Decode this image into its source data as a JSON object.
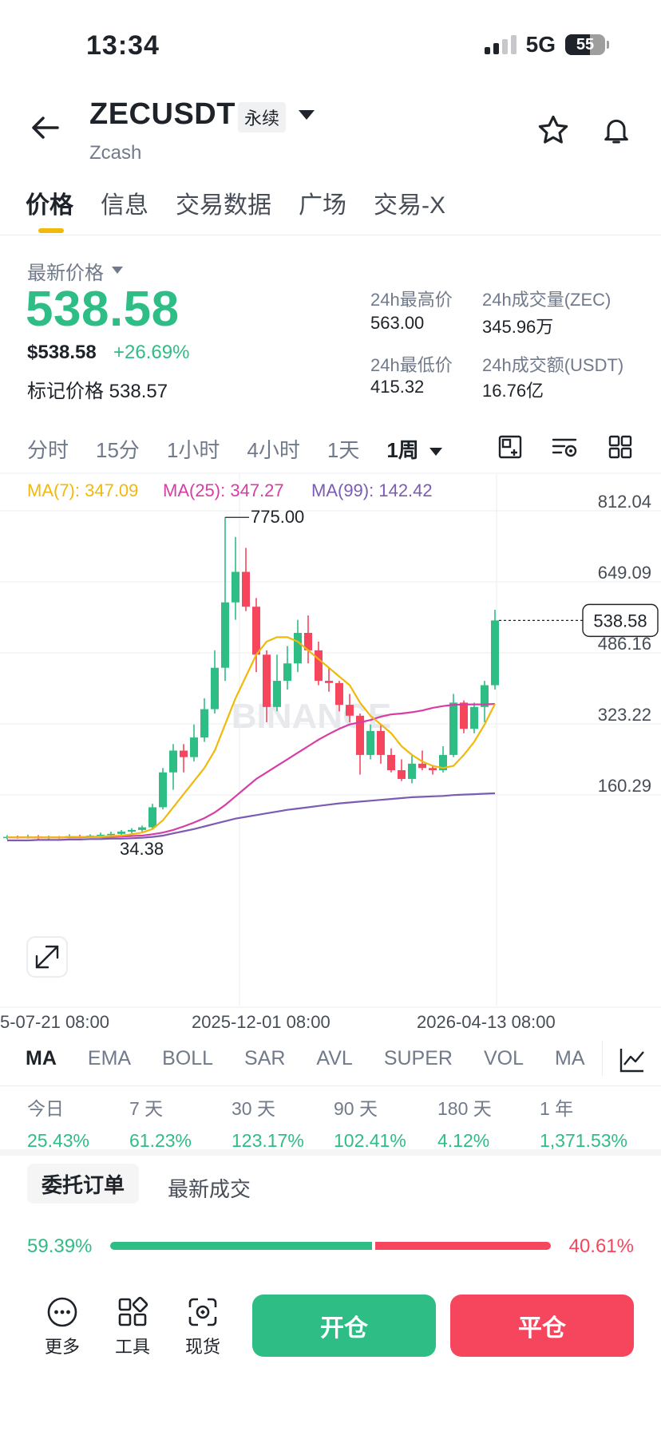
{
  "status_bar": {
    "time": "13:34",
    "network": "5G",
    "battery": "55"
  },
  "header": {
    "symbol": "ZECUSDT",
    "contract_type": "永续",
    "subtitle": "Zcash"
  },
  "tabs": [
    {
      "label": "价格"
    },
    {
      "label": "信息"
    },
    {
      "label": "交易数据"
    },
    {
      "label": "广场"
    },
    {
      "label": "交易-X"
    }
  ],
  "price_info": {
    "latest_label": "最新价格",
    "last_price": "538.58",
    "usd_price": "$538.58",
    "change_pct": "+26.69%",
    "mark_label": "标记价格",
    "mark_price": "538.57",
    "high_label": "24h最高价",
    "high": "563.00",
    "low_label": "24h最低价",
    "low": "415.32",
    "vol_label": "24h成交量(ZEC)",
    "vol": "345.96万",
    "amount_label": "24h成交额(USDT)",
    "amount": "16.76亿"
  },
  "intervals": [
    {
      "label": "分时"
    },
    {
      "label": "15分"
    },
    {
      "label": "1小时"
    },
    {
      "label": "4小时"
    },
    {
      "label": "1天"
    },
    {
      "label": "1周"
    }
  ],
  "chart_data": {
    "type": "candlestick",
    "ma_legend": {
      "ma7": "MA(7): 347.09",
      "ma25": "MA(25): 347.27",
      "ma99": "MA(99): 142.42"
    },
    "y_ticks": [
      "812.04",
      "649.09",
      "486.16",
      "323.22",
      "160.29"
    ],
    "x_ticks": [
      "5-07-21 08:00",
      "2025-12-01 08:00",
      "2026-04-13 08:00"
    ],
    "current_price_label": "538.58",
    "current_price": 538.58,
    "high_marker": "775.00",
    "high_value": 775.0,
    "low_marker": "34.38",
    "low_value": 34.38,
    "watermark": "BINANCE",
    "colors": {
      "up": "#2ebd85",
      "down": "#f6465d",
      "ma7": "#f0b90b",
      "ma25": "#d63ea3",
      "ma99": "#7b5bb3"
    },
    "candles": [
      {
        "o": 40,
        "c": 42,
        "h": 46,
        "l": 36
      },
      {
        "o": 42,
        "c": 41,
        "h": 45,
        "l": 38
      },
      {
        "o": 41,
        "c": 43,
        "h": 47,
        "l": 38
      },
      {
        "o": 43,
        "c": 40,
        "h": 46,
        "l": 37
      },
      {
        "o": 40,
        "c": 42,
        "h": 45,
        "l": 36
      },
      {
        "o": 42,
        "c": 41,
        "h": 44,
        "l": 38
      },
      {
        "o": 41,
        "c": 44,
        "h": 48,
        "l": 39
      },
      {
        "o": 44,
        "c": 42,
        "h": 47,
        "l": 39
      },
      {
        "o": 42,
        "c": 45,
        "h": 48,
        "l": 40
      },
      {
        "o": 45,
        "c": 47,
        "h": 52,
        "l": 42
      },
      {
        "o": 47,
        "c": 49,
        "h": 54,
        "l": 44
      },
      {
        "o": 49,
        "c": 54,
        "h": 58,
        "l": 46
      },
      {
        "o": 54,
        "c": 58,
        "h": 62,
        "l": 50
      },
      {
        "o": 58,
        "c": 64,
        "h": 68,
        "l": 54
      },
      {
        "o": 64,
        "c": 110,
        "h": 118,
        "l": 60
      },
      {
        "o": 110,
        "c": 190,
        "h": 200,
        "l": 105
      },
      {
        "o": 190,
        "c": 240,
        "h": 255,
        "l": 150
      },
      {
        "o": 240,
        "c": 225,
        "h": 255,
        "l": 190
      },
      {
        "o": 225,
        "c": 270,
        "h": 300,
        "l": 215
      },
      {
        "o": 270,
        "c": 335,
        "h": 360,
        "l": 260
      },
      {
        "o": 335,
        "c": 430,
        "h": 470,
        "l": 325
      },
      {
        "o": 430,
        "c": 580,
        "h": 775,
        "l": 400
      },
      {
        "o": 580,
        "c": 650,
        "h": 730,
        "l": 540
      },
      {
        "o": 650,
        "c": 570,
        "h": 705,
        "l": 560
      },
      {
        "o": 570,
        "c": 460,
        "h": 590,
        "l": 420
      },
      {
        "o": 460,
        "c": 340,
        "h": 470,
        "l": 305
      },
      {
        "o": 340,
        "c": 400,
        "h": 460,
        "l": 330
      },
      {
        "o": 400,
        "c": 440,
        "h": 480,
        "l": 380
      },
      {
        "o": 440,
        "c": 510,
        "h": 540,
        "l": 420
      },
      {
        "o": 510,
        "c": 470,
        "h": 550,
        "l": 440
      },
      {
        "o": 470,
        "c": 400,
        "h": 490,
        "l": 390
      },
      {
        "o": 400,
        "c": 395,
        "h": 430,
        "l": 375
      },
      {
        "o": 395,
        "c": 345,
        "h": 400,
        "l": 330
      },
      {
        "o": 345,
        "c": 320,
        "h": 370,
        "l": 305
      },
      {
        "o": 320,
        "c": 230,
        "h": 325,
        "l": 185
      },
      {
        "o": 230,
        "c": 285,
        "h": 300,
        "l": 220
      },
      {
        "o": 285,
        "c": 230,
        "h": 300,
        "l": 210
      },
      {
        "o": 230,
        "c": 195,
        "h": 245,
        "l": 190
      },
      {
        "o": 195,
        "c": 175,
        "h": 220,
        "l": 170
      },
      {
        "o": 175,
        "c": 210,
        "h": 230,
        "l": 165
      },
      {
        "o": 210,
        "c": 200,
        "h": 240,
        "l": 195
      },
      {
        "o": 200,
        "c": 195,
        "h": 205,
        "l": 185
      },
      {
        "o": 195,
        "c": 230,
        "h": 250,
        "l": 190
      },
      {
        "o": 230,
        "c": 350,
        "h": 370,
        "l": 225
      },
      {
        "o": 350,
        "c": 290,
        "h": 355,
        "l": 280
      },
      {
        "o": 290,
        "c": 340,
        "h": 350,
        "l": 280
      },
      {
        "o": 340,
        "c": 390,
        "h": 400,
        "l": 305
      },
      {
        "o": 390,
        "c": 538.58,
        "h": 563,
        "l": 380
      }
    ],
    "ma7": [
      41,
      41,
      41,
      41,
      41,
      41,
      42,
      42,
      42,
      43,
      44,
      45,
      48,
      52,
      60,
      80,
      110,
      140,
      170,
      200,
      240,
      300,
      360,
      410,
      460,
      490,
      500,
      500,
      490,
      470,
      450,
      430,
      410,
      390,
      350,
      320,
      300,
      280,
      250,
      230,
      215,
      205,
      200,
      205,
      230,
      260,
      300,
      347
    ],
    "ma25": [
      41,
      41,
      41,
      41,
      41,
      41,
      41,
      41,
      42,
      42,
      42,
      43,
      44,
      45,
      48,
      52,
      58,
      66,
      75,
      85,
      98,
      115,
      135,
      155,
      175,
      190,
      205,
      220,
      235,
      250,
      265,
      278,
      290,
      300,
      305,
      310,
      318,
      323,
      325,
      328,
      332,
      338,
      342,
      345,
      346,
      346,
      346,
      347
    ],
    "ma99": [
      34,
      34,
      34,
      35,
      35,
      35,
      36,
      36,
      37,
      37,
      38,
      38,
      39,
      40,
      42,
      45,
      50,
      55,
      60,
      66,
      72,
      78,
      84,
      88,
      92,
      96,
      100,
      104,
      107,
      110,
      113,
      116,
      119,
      121,
      123,
      125,
      127,
      129,
      131,
      133,
      134,
      135,
      136,
      138,
      139,
      140,
      141,
      142
    ]
  },
  "indicators": [
    {
      "label": "MA"
    },
    {
      "label": "EMA"
    },
    {
      "label": "BOLL"
    },
    {
      "label": "SAR"
    },
    {
      "label": "AVL"
    },
    {
      "label": "SUPER"
    },
    {
      "label": "VOL"
    },
    {
      "label": "MA"
    }
  ],
  "performance": [
    {
      "label": "今日",
      "value": "25.43%"
    },
    {
      "label": "7 天",
      "value": "61.23%"
    },
    {
      "label": "30 天",
      "value": "123.17%"
    },
    {
      "label": "90 天",
      "value": "102.41%"
    },
    {
      "label": "180 天",
      "value": "4.12%"
    },
    {
      "label": "1 年",
      "value": "1,371.53%"
    }
  ],
  "orderbook": {
    "tab_active": "委托订单",
    "tab_other": "最新成交",
    "buy_ratio": "59.39%",
    "sell_ratio": "40.61%",
    "buy_fraction": 0.5939
  },
  "bottom_nav": {
    "more": "更多",
    "tools": "工具",
    "spot": "现货",
    "open": "开仓",
    "close": "平仓"
  }
}
